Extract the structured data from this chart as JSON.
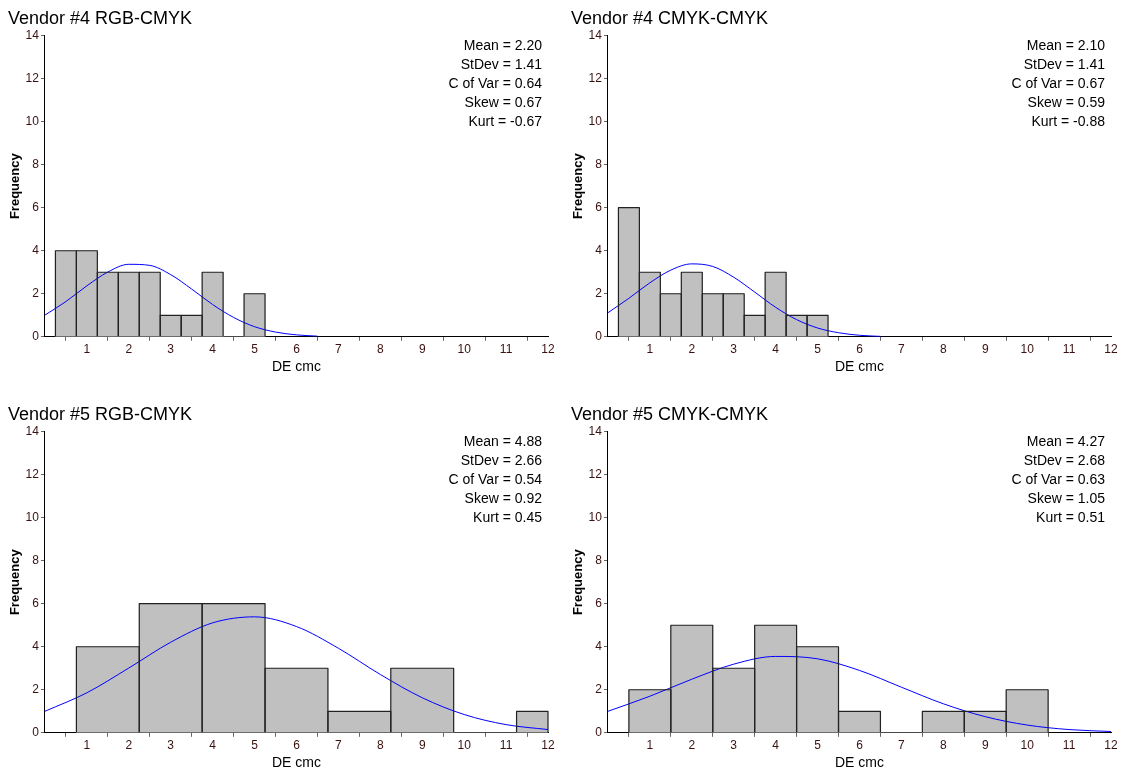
{
  "chart_data": [
    {
      "type": "histogram",
      "title": "Vendor #4 RGB-CMYK",
      "xlabel": "DE cmc",
      "ylabel": "Frequency",
      "xlim": [
        0,
        12
      ],
      "xticks": [
        1,
        2,
        3,
        4,
        5,
        6,
        7,
        8,
        9,
        10,
        11,
        12
      ],
      "ylim": [
        0,
        14
      ],
      "yticks": [
        0,
        2,
        4,
        6,
        8,
        10,
        12,
        14
      ],
      "grid": false,
      "legend": false,
      "marker": "none",
      "annotations": [
        "Mean = 2.20",
        "StDev = 1.41",
        "C of Var = 0.64",
        "Skew = 0.67",
        "Kurt = -0.67"
      ],
      "series": [
        {
          "type": "histogram",
          "color": "#c0c0c0",
          "bins": [
            0.25,
            0.75,
            1.25,
            1.75,
            2.25,
            2.75,
            3.25,
            3.75,
            4.25,
            4.75,
            5.25
          ],
          "values": [
            4,
            4,
            3,
            3,
            3,
            1,
            1,
            3,
            0,
            2
          ]
        },
        {
          "type": "line",
          "color": "#0000ff",
          "x": [
            0,
            0.5,
            1,
            1.5,
            2,
            2.5,
            3,
            3.5,
            4,
            4.5,
            5,
            5.5,
            6,
            6.5
          ],
          "values": [
            1.01,
            1.64,
            2.37,
            3.01,
            3.37,
            3.32,
            2.89,
            2.22,
            1.5,
            0.9,
            0.47,
            0.22,
            0.09,
            0.03
          ]
        }
      ]
    },
    {
      "type": "histogram",
      "title": "Vendor #4 CMYK-CMYK",
      "xlabel": "DE cmc",
      "ylabel": "Frequency",
      "xlim": [
        0,
        12
      ],
      "xticks": [
        1,
        2,
        3,
        4,
        5,
        6,
        7,
        8,
        9,
        10,
        11,
        12
      ],
      "ylim": [
        0,
        14
      ],
      "yticks": [
        0,
        2,
        4,
        6,
        8,
        10,
        12,
        14
      ],
      "grid": false,
      "legend": false,
      "marker": "none",
      "annotations": [
        "Mean = 2.10",
        "StDev = 1.41",
        "C of Var = 0.67",
        "Skew = 0.59",
        "Kurt = -0.88"
      ],
      "series": [
        {
          "type": "histogram",
          "color": "#c0c0c0",
          "bins": [
            0.25,
            0.75,
            1.25,
            1.75,
            2.25,
            2.75,
            3.25,
            3.75,
            4.25,
            4.75,
            5.25
          ],
          "values": [
            6,
            3,
            2,
            3,
            2,
            2,
            1,
            3,
            1,
            1
          ]
        },
        {
          "type": "line",
          "color": "#0000ff",
          "x": [
            0,
            0.5,
            1,
            1.5,
            2,
            2.5,
            3,
            3.5,
            4,
            4.5,
            5,
            5.5,
            6,
            6.5
          ],
          "values": [
            1.12,
            1.79,
            2.51,
            3.1,
            3.39,
            3.27,
            2.77,
            2.08,
            1.37,
            0.8,
            0.41,
            0.19,
            0.07,
            0.02
          ]
        }
      ]
    },
    {
      "type": "histogram",
      "title": "Vendor #5 RGB-CMYK",
      "xlabel": "DE cmc",
      "ylabel": "Frequency",
      "xlim": [
        0,
        12
      ],
      "xticks": [
        1,
        2,
        3,
        4,
        5,
        6,
        7,
        8,
        9,
        10,
        11,
        12
      ],
      "ylim": [
        0,
        14
      ],
      "yticks": [
        0,
        2,
        4,
        6,
        8,
        10,
        12,
        14
      ],
      "grid": false,
      "legend": false,
      "marker": "none",
      "annotations": [
        "Mean = 4.88",
        "StDev = 2.66",
        "C of Var = 0.54",
        "Skew = 0.92",
        "Kurt = 0.45"
      ],
      "series": [
        {
          "type": "histogram",
          "color": "#c0c0c0",
          "bins": [
            0.75,
            2.25,
            3.75,
            5.25,
            6.75,
            8.25,
            9.75,
            11.25,
            12
          ],
          "values": [
            4,
            6,
            6,
            3,
            1,
            3,
            0,
            1
          ]
        },
        {
          "type": "line",
          "color": "#0000ff",
          "x": [
            0,
            1,
            2,
            3,
            4,
            5,
            6,
            7,
            8,
            9,
            10,
            11,
            12
          ],
          "values": [
            1.0,
            1.86,
            3.01,
            4.21,
            5.11,
            5.39,
            4.94,
            3.93,
            2.71,
            1.63,
            0.85,
            0.38,
            0.15
          ]
        }
      ]
    },
    {
      "type": "histogram",
      "title": "Vendor #5 CMYK-CMYK",
      "xlabel": "DE cmc",
      "ylabel": "Frequency",
      "xlim": [
        0,
        12
      ],
      "xticks": [
        1,
        2,
        3,
        4,
        5,
        6,
        7,
        8,
        9,
        10,
        11,
        12
      ],
      "ylim": [
        0,
        14
      ],
      "yticks": [
        0,
        2,
        4,
        6,
        8,
        10,
        12,
        14
      ],
      "grid": false,
      "legend": false,
      "marker": "none",
      "annotations": [
        "Mean = 4.27",
        "StDev = 2.68",
        "C of Var = 0.63",
        "Skew = 1.05",
        "Kurt = 0.51"
      ],
      "series": [
        {
          "type": "histogram",
          "color": "#c0c0c0",
          "bins": [
            0.5,
            1.5,
            2.5,
            3.5,
            4.5,
            5.5,
            6.5,
            7.5,
            8.5,
            9.5,
            10.5
          ],
          "values": [
            2,
            5,
            3,
            5,
            4,
            1,
            0,
            1,
            1,
            2
          ]
        },
        {
          "type": "line",
          "color": "#0000ff",
          "x": [
            0,
            1,
            2,
            3,
            4,
            5,
            6,
            7,
            8,
            9,
            10,
            11,
            12
          ],
          "values": [
            1.0,
            1.7,
            2.49,
            3.19,
            3.55,
            3.44,
            2.9,
            2.12,
            1.35,
            0.75,
            0.36,
            0.15,
            0.06
          ]
        }
      ]
    }
  ]
}
